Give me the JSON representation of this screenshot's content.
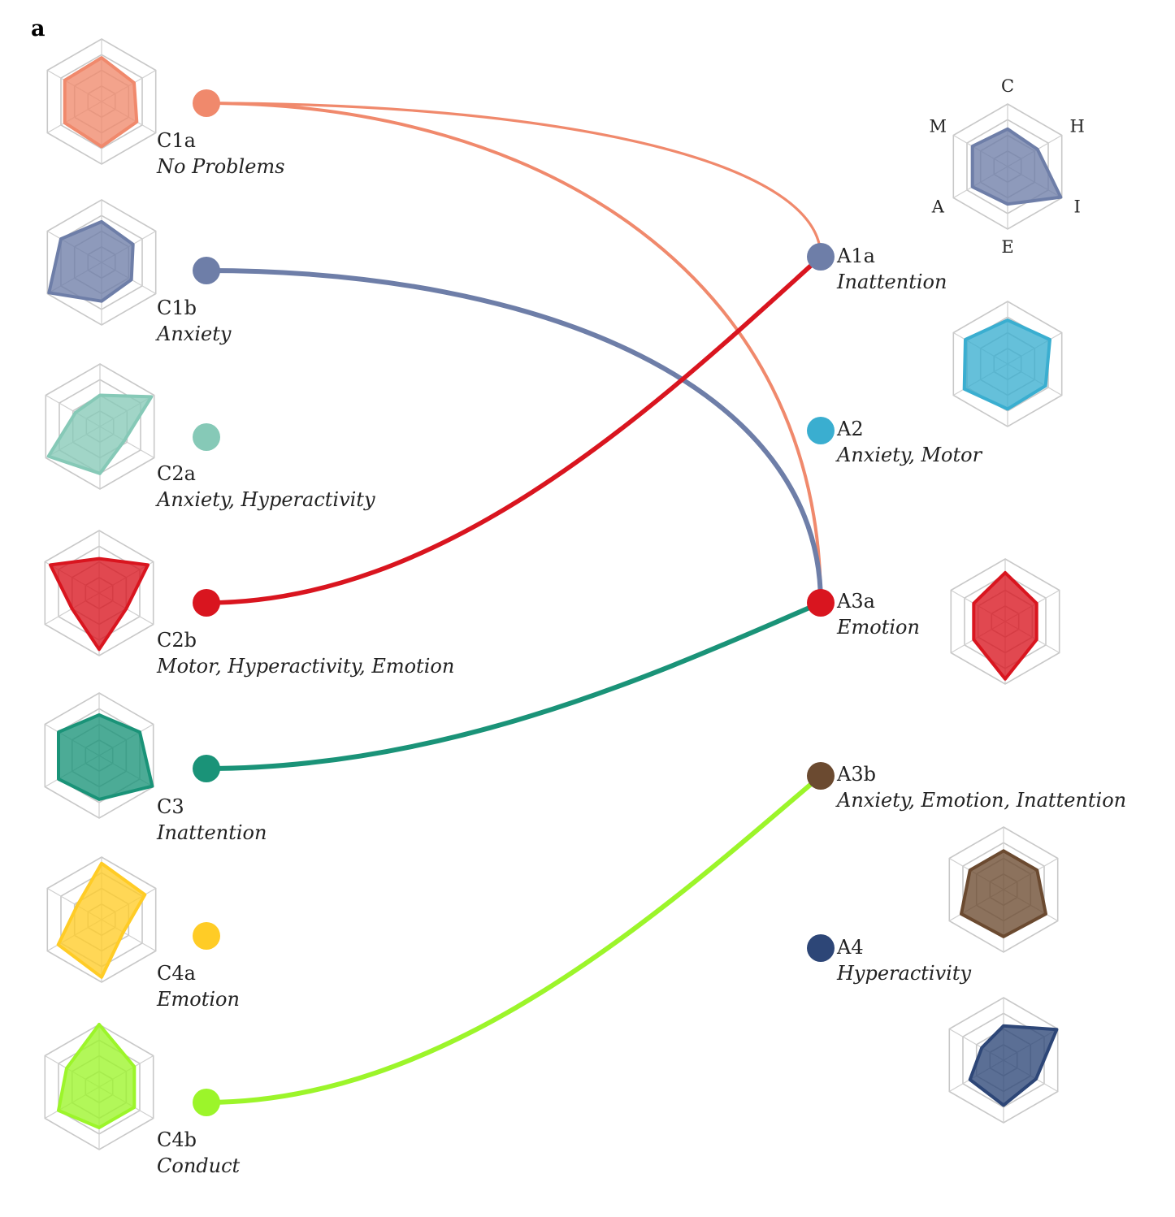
{
  "panel_label": "a",
  "axis_labels": [
    "C",
    "H",
    "I",
    "E",
    "A",
    "M"
  ],
  "left_clusters": [
    {
      "code": "C1a",
      "desc": "No Problems",
      "color": "#f0896c",
      "profile": [
        0.7,
        0.6,
        0.65,
        0.72,
        0.68,
        0.68
      ]
    },
    {
      "code": "C1b",
      "desc": "Anxiety",
      "color": "#6e7ea8",
      "profile": [
        0.65,
        0.58,
        0.55,
        0.62,
        0.97,
        0.75
      ]
    },
    {
      "code": "C2a",
      "desc": "Anxiety, Hyperactivity",
      "color": "#86c9b7",
      "profile": [
        0.5,
        0.95,
        0.45,
        0.75,
        0.95,
        0.45
      ]
    },
    {
      "code": "C2b",
      "desc": "Motor, Hyperactivity, Emotion",
      "color": "#d9151f",
      "profile": [
        0.55,
        0.9,
        0.5,
        0.9,
        0.5,
        0.9
      ]
    },
    {
      "code": "C3",
      "desc": "Inattention",
      "color": "#1a9378",
      "profile": [
        0.65,
        0.75,
        0.98,
        0.7,
        0.75,
        0.75
      ]
    },
    {
      "code": "C4a",
      "desc": "Emotion",
      "color": "#ffcc26",
      "profile": [
        0.9,
        0.8,
        0.4,
        0.92,
        0.8,
        0.45
      ]
    },
    {
      "code": "C4b",
      "desc": "Conduct",
      "color": "#9cf52a",
      "profile": [
        1.0,
        0.65,
        0.65,
        0.65,
        0.75,
        0.6
      ]
    }
  ],
  "right_clusters": [
    {
      "code": "A1a",
      "desc": "Inattention",
      "color": "#6e7ea8",
      "profile": [
        0.6,
        0.55,
        0.98,
        0.6,
        0.65,
        0.65
      ]
    },
    {
      "code": "A2",
      "desc": "Anxiety, Motor",
      "color": "#3aaed0",
      "profile": [
        0.7,
        0.78,
        0.7,
        0.72,
        0.8,
        0.78
      ]
    },
    {
      "code": "A3a",
      "desc": "Emotion",
      "color": "#d9151f",
      "profile": [
        0.78,
        0.58,
        0.58,
        0.92,
        0.58,
        0.58
      ]
    },
    {
      "code": "A3b",
      "desc": "Anxiety, Emotion, Inattention",
      "color": "#6b4a30",
      "profile": [
        0.62,
        0.62,
        0.78,
        0.75,
        0.78,
        0.62
      ]
    },
    {
      "code": "A4",
      "desc": "Hyperactivity",
      "color": "#2d4677",
      "profile": [
        0.55,
        0.98,
        0.6,
        0.72,
        0.62,
        0.4
      ]
    }
  ],
  "connections": [
    {
      "from": "C1a",
      "to": "A1a",
      "color": "#f0896c",
      "weight": 0.3
    },
    {
      "from": "C1a",
      "to": "A3a",
      "color": "#f0896c",
      "weight": 0.5
    },
    {
      "from": "C1b",
      "to": "A3a",
      "color": "#6e7ea8",
      "weight": 1.0
    },
    {
      "from": "C2b",
      "to": "A1a",
      "color": "#d9151f",
      "weight": 0.9
    },
    {
      "from": "C3",
      "to": "A3a",
      "color": "#1a9378",
      "weight": 1.0
    },
    {
      "from": "C4b",
      "to": "A3b",
      "color": "#9cf52a",
      "weight": 1.0
    }
  ]
}
